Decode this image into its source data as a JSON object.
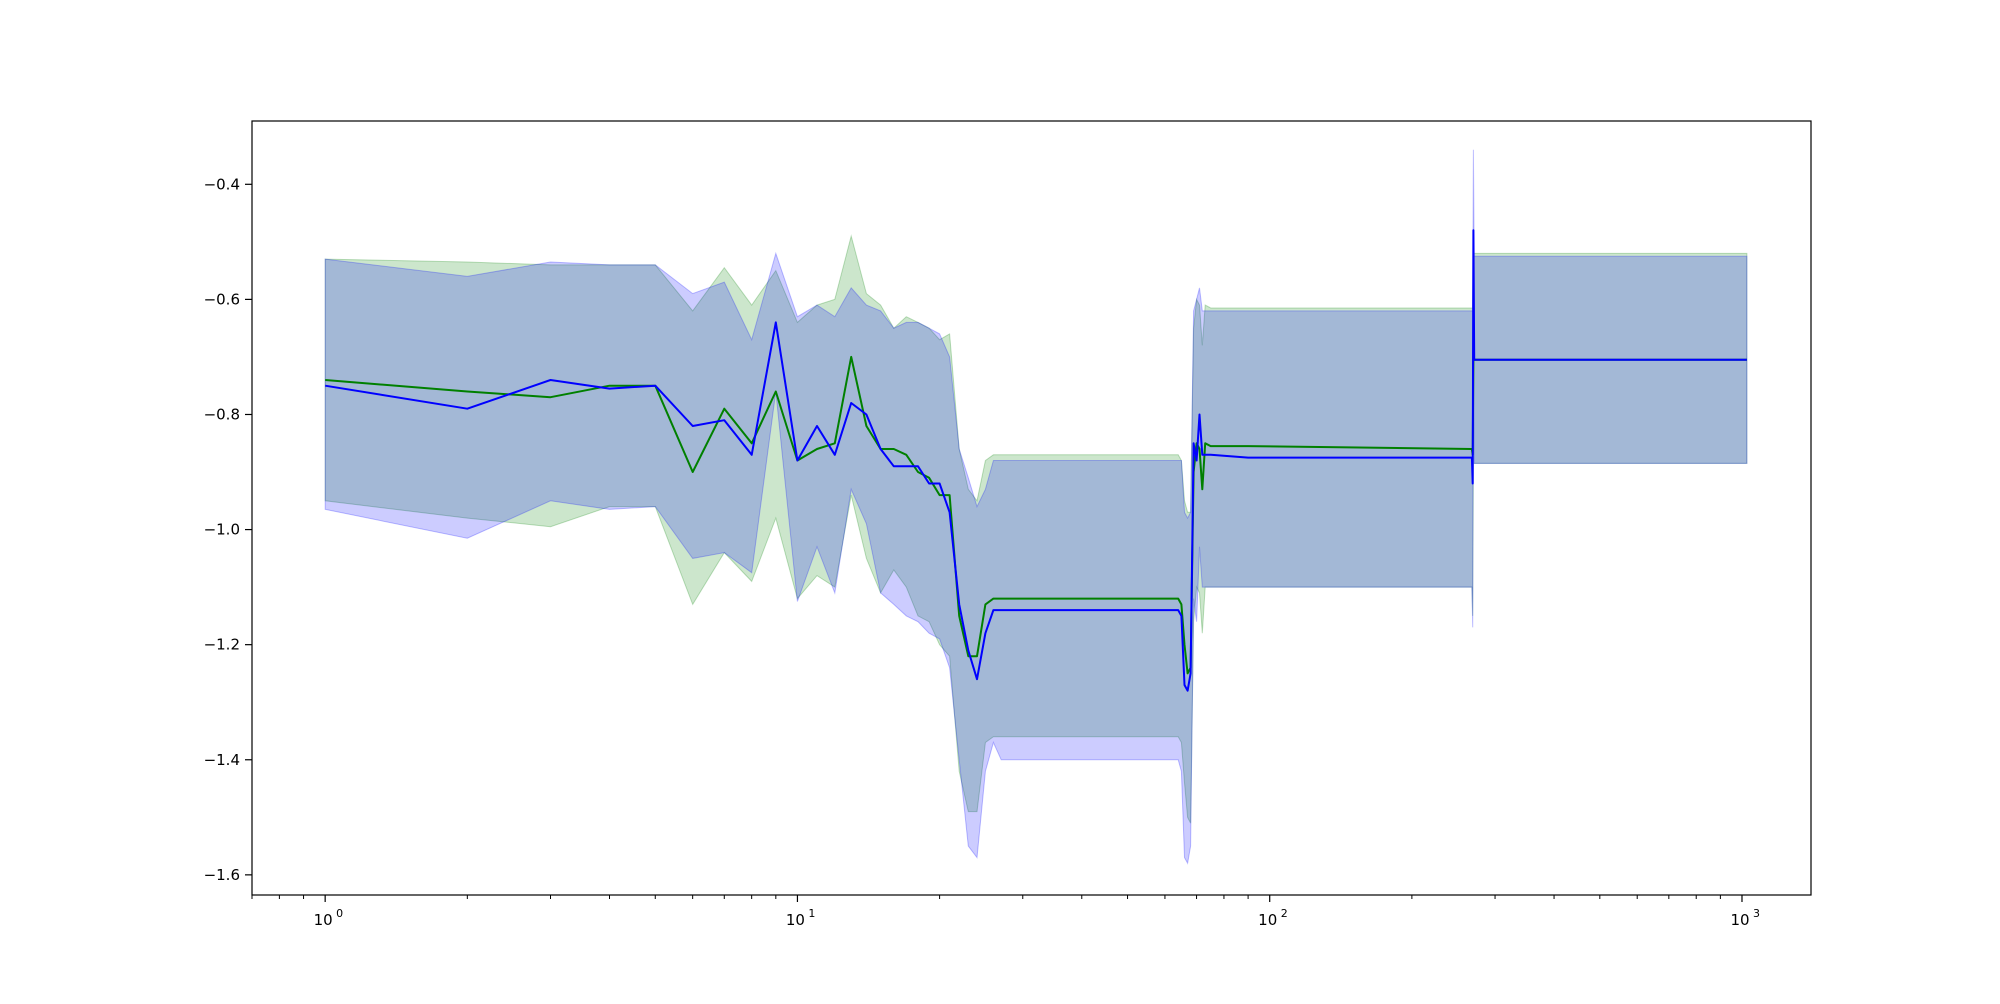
{
  "chart_data": {
    "type": "line",
    "title": "",
    "xlabel": "",
    "ylabel": "",
    "xscale": "log",
    "xlim": [
      0.7,
      1400
    ],
    "ylim": [
      -1.635,
      -0.29
    ],
    "grid": false,
    "legend": "none",
    "x_ticks": [
      {
        "value": 1,
        "label": "10",
        "exp": "0"
      },
      {
        "value": 10,
        "label": "10",
        "exp": "1"
      },
      {
        "value": 100,
        "label": "10",
        "exp": "2"
      },
      {
        "value": 1000,
        "label": "10",
        "exp": "3"
      }
    ],
    "y_ticks": [
      {
        "value": -0.4,
        "label": "−0.4"
      },
      {
        "value": -0.6,
        "label": "−0.6"
      },
      {
        "value": -0.8,
        "label": "−0.8"
      },
      {
        "value": -1.0,
        "label": "−1.0"
      },
      {
        "value": -1.2,
        "label": "−1.2"
      },
      {
        "value": -1.4,
        "label": "−1.4"
      },
      {
        "value": -1.6,
        "label": "−1.6"
      }
    ],
    "series": [
      {
        "color": "#008000",
        "band_color": "#008000",
        "band_opacity": 0.2,
        "x": [
          1,
          2,
          3,
          4,
          5,
          6,
          7,
          8,
          9,
          10,
          11,
          12,
          13,
          14,
          15,
          16,
          17,
          18,
          19,
          20,
          21,
          22,
          23,
          24,
          25,
          26,
          27,
          64,
          65,
          66,
          67,
          68,
          69,
          70,
          71,
          72,
          73,
          75,
          90,
          268,
          269,
          270,
          271,
          1024
        ],
        "y": [
          -0.74,
          -0.76,
          -0.77,
          -0.75,
          -0.75,
          -0.9,
          -0.79,
          -0.85,
          -0.76,
          -0.88,
          -0.86,
          -0.85,
          -0.7,
          -0.82,
          -0.86,
          -0.86,
          -0.87,
          -0.9,
          -0.91,
          -0.94,
          -0.94,
          -1.15,
          -1.22,
          -1.22,
          -1.13,
          -1.12,
          -1.12,
          -1.12,
          -1.13,
          -1.2,
          -1.25,
          -1.24,
          -0.9,
          -0.85,
          -0.86,
          -0.93,
          -0.85,
          -0.855,
          -0.855,
          -0.86,
          -0.87,
          -0.7,
          -0.705,
          -0.705
        ],
        "upper": [
          -0.53,
          -0.535,
          -0.54,
          -0.54,
          -0.54,
          -0.62,
          -0.545,
          -0.61,
          -0.55,
          -0.64,
          -0.61,
          -0.6,
          -0.49,
          -0.59,
          -0.61,
          -0.65,
          -0.63,
          -0.64,
          -0.65,
          -0.67,
          -0.66,
          -0.86,
          -0.93,
          -0.95,
          -0.88,
          -0.87,
          -0.87,
          -0.87,
          -0.88,
          -0.95,
          -0.97,
          -0.97,
          -0.65,
          -0.6,
          -0.61,
          -0.68,
          -0.61,
          -0.615,
          -0.615,
          -0.615,
          -0.615,
          -0.52,
          -0.52,
          -0.52
        ],
        "lower": [
          -0.95,
          -0.98,
          -0.995,
          -0.96,
          -0.96,
          -1.13,
          -1.04,
          -1.09,
          -0.98,
          -1.12,
          -1.08,
          -1.1,
          -0.94,
          -1.05,
          -1.11,
          -1.07,
          -1.1,
          -1.15,
          -1.16,
          -1.2,
          -1.22,
          -1.42,
          -1.49,
          -1.49,
          -1.37,
          -1.36,
          -1.36,
          -1.36,
          -1.37,
          -1.44,
          -1.5,
          -1.51,
          -1.16,
          -1.1,
          -1.11,
          -1.18,
          -1.1,
          -1.1,
          -1.1,
          -1.1,
          -1.15,
          -0.885,
          -0.885,
          -0.885
        ]
      },
      {
        "color": "#0000ff",
        "band_color": "#0000ff",
        "band_opacity": 0.2,
        "x": [
          1,
          2,
          3,
          4,
          5,
          6,
          7,
          8,
          9,
          10,
          11,
          12,
          13,
          14,
          15,
          16,
          17,
          18,
          19,
          20,
          21,
          22,
          23,
          24,
          25,
          26,
          27,
          64,
          65,
          66,
          67,
          68,
          69,
          70,
          71,
          72,
          73,
          75,
          90,
          268,
          269,
          270,
          271,
          1024
        ],
        "y": [
          -0.75,
          -0.79,
          -0.74,
          -0.755,
          -0.75,
          -0.82,
          -0.81,
          -0.87,
          -0.64,
          -0.88,
          -0.82,
          -0.87,
          -0.78,
          -0.8,
          -0.86,
          -0.89,
          -0.89,
          -0.89,
          -0.92,
          -0.92,
          -0.97,
          -1.13,
          -1.21,
          -1.26,
          -1.18,
          -1.14,
          -1.14,
          -1.14,
          -1.15,
          -1.27,
          -1.28,
          -1.25,
          -0.85,
          -0.88,
          -0.8,
          -0.87,
          -0.87,
          -0.87,
          -0.875,
          -0.875,
          -0.92,
          -0.48,
          -0.705,
          -0.705
        ],
        "upper": [
          -0.53,
          -0.56,
          -0.535,
          -0.54,
          -0.54,
          -0.59,
          -0.57,
          -0.67,
          -0.52,
          -0.63,
          -0.61,
          -0.63,
          -0.58,
          -0.61,
          -0.62,
          -0.65,
          -0.64,
          -0.64,
          -0.65,
          -0.66,
          -0.7,
          -0.86,
          -0.91,
          -0.96,
          -0.93,
          -0.88,
          -0.88,
          -0.88,
          -0.88,
          -0.97,
          -0.98,
          -0.97,
          -0.62,
          -0.6,
          -0.58,
          -0.62,
          -0.62,
          -0.62,
          -0.62,
          -0.62,
          -0.62,
          -0.34,
          -0.525,
          -0.525
        ],
        "lower": [
          -0.965,
          -1.015,
          -0.95,
          -0.965,
          -0.96,
          -1.05,
          -1.04,
          -1.075,
          -0.76,
          -1.125,
          -1.03,
          -1.11,
          -0.93,
          -0.99,
          -1.11,
          -1.13,
          -1.15,
          -1.16,
          -1.18,
          -1.19,
          -1.24,
          -1.4,
          -1.55,
          -1.57,
          -1.42,
          -1.37,
          -1.4,
          -1.4,
          -1.42,
          -1.57,
          -1.58,
          -1.55,
          -1.12,
          -1.16,
          -1.03,
          -1.1,
          -1.1,
          -1.1,
          -1.1,
          -1.1,
          -1.17,
          -0.62,
          -0.885,
          -0.885
        ]
      }
    ]
  }
}
